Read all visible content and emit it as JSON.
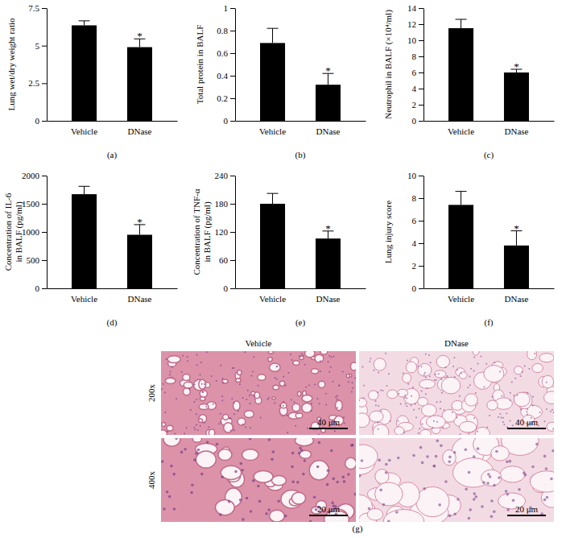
{
  "chart_data": [
    {
      "type": "bar",
      "title": "(a)",
      "ylabel": [
        "Lung wet/dry weight ratio"
      ],
      "categories": [
        "Vehicle",
        "DNase"
      ],
      "values": [
        6.35,
        4.9
      ],
      "errors": [
        0.3,
        0.55
      ],
      "color": "#000000",
      "ylim": [
        0,
        7.5
      ],
      "yticks": [
        0,
        2.5,
        5,
        7.5
      ],
      "annotations": [
        {
          "text": "*",
          "x": "DNase"
        }
      ]
    },
    {
      "type": "bar",
      "title": "(b)",
      "ylabel": [
        "Total protein in BALF"
      ],
      "categories": [
        "Vehicle",
        "DNase"
      ],
      "values": [
        0.69,
        0.32
      ],
      "errors": [
        0.13,
        0.1
      ],
      "color": "#000000",
      "ylim": [
        0,
        1
      ],
      "yticks": [
        0,
        0.2,
        0.4,
        0.6,
        0.8,
        1
      ],
      "annotations": [
        {
          "text": "*",
          "x": "DNase"
        }
      ]
    },
    {
      "type": "bar",
      "title": "(c)",
      "ylabel": [
        "Neutrophil in BALF (×10⁴/ml)"
      ],
      "categories": [
        "Vehicle",
        "DNase"
      ],
      "values": [
        11.5,
        6.0
      ],
      "errors": [
        1.1,
        0.4
      ],
      "color": "#000000",
      "ylim": [
        0,
        14
      ],
      "yticks": [
        0,
        2,
        4,
        6,
        8,
        10,
        12,
        14
      ],
      "annotations": [
        {
          "text": "*",
          "x": "DNase"
        }
      ]
    },
    {
      "type": "bar",
      "title": "(d)",
      "ylabel": [
        "Concentration of IL-6",
        "in BALF (pg/ml)"
      ],
      "categories": [
        "Vehicle",
        "DNase"
      ],
      "values": [
        1670,
        950
      ],
      "errors": [
        140,
        180
      ],
      "color": "#000000",
      "ylim": [
        0,
        2000
      ],
      "yticks": [
        0,
        500,
        1000,
        1500,
        2000
      ],
      "annotations": [
        {
          "text": "*",
          "x": "DNase"
        }
      ]
    },
    {
      "type": "bar",
      "title": "(e)",
      "ylabel": [
        "Concentration of TNF-α",
        "in BALF (pg/ml)"
      ],
      "categories": [
        "Vehicle",
        "DNase"
      ],
      "values": [
        180,
        106
      ],
      "errors": [
        22,
        16
      ],
      "color": "#000000",
      "ylim": [
        0,
        240
      ],
      "yticks": [
        0,
        60,
        120,
        180,
        240
      ],
      "annotations": [
        {
          "text": "*",
          "x": "DNase"
        }
      ]
    },
    {
      "type": "bar",
      "title": "(f)",
      "ylabel": [
        "Lung injury score"
      ],
      "categories": [
        "Vehicle",
        "DNase"
      ],
      "values": [
        7.4,
        3.8
      ],
      "errors": [
        1.2,
        1.3
      ],
      "color": "#000000",
      "ylim": [
        0,
        10
      ],
      "yticks": [
        0,
        2,
        4,
        6,
        8,
        10
      ],
      "annotations": [
        {
          "text": "*",
          "x": "DNase"
        }
      ]
    }
  ],
  "micrographs": {
    "label": "(g)",
    "columns": [
      "Vehicle",
      "DNase"
    ],
    "rows": [
      "200x",
      "400x"
    ],
    "scale_bars": [
      "40 μm",
      "20 μm"
    ]
  }
}
